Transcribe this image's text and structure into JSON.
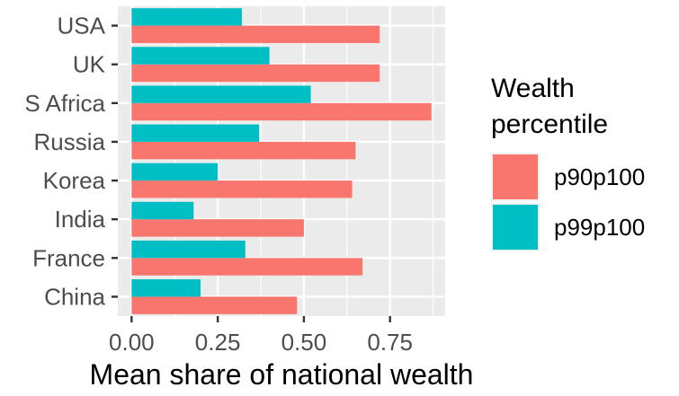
{
  "chart_data": {
    "type": "bar",
    "orientation": "horizontal",
    "categories": [
      "USA",
      "UK",
      "S Africa",
      "Russia",
      "Korea",
      "India",
      "France",
      "China"
    ],
    "series": [
      {
        "name": "p90p100",
        "color": "#F8766D",
        "values": [
          0.72,
          0.72,
          0.87,
          0.65,
          0.64,
          0.5,
          0.67,
          0.48
        ]
      },
      {
        "name": "p99p100",
        "color": "#00BFC4",
        "values": [
          0.32,
          0.4,
          0.52,
          0.37,
          0.25,
          0.18,
          0.33,
          0.2
        ]
      }
    ],
    "xlabel": "Mean share of national wealth",
    "ylabel": "",
    "xlim": [
      -0.04,
      0.91
    ],
    "xticks": [
      0.0,
      0.25,
      0.5,
      0.75
    ],
    "xtick_labels": [
      "0.00",
      "0.25",
      "0.50",
      "0.75"
    ],
    "grid": true,
    "panel_background": "#EBEBEB",
    "legend": {
      "title_lines": [
        "Wealth",
        "percentile"
      ],
      "placement": "right"
    }
  }
}
